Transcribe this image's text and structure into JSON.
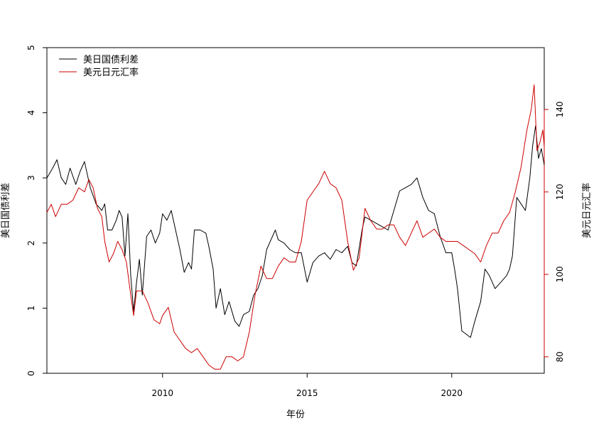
{
  "chart_data": {
    "type": "line",
    "xlabel": "年份",
    "ylabel_left": "美日国债利差",
    "ylabel_right": "美元日元汇率",
    "xlim": [
      2006.0,
      2023.2
    ],
    "ylim_left": [
      0,
      5
    ],
    "ylim_right": [
      76,
      155
    ],
    "x_ticks": [
      2010,
      2015,
      2020
    ],
    "y_ticks_left": [
      0,
      1,
      2,
      3,
      4,
      5
    ],
    "y_ticks_right": [
      80,
      100,
      120,
      140
    ],
    "grid": false,
    "legend_position": "top-left",
    "series": [
      {
        "name": "美日国债利差",
        "color": "#000000",
        "axis": "left",
        "x": [
          2006.0,
          2006.2,
          2006.35,
          2006.5,
          2006.65,
          2006.8,
          2007.0,
          2007.15,
          2007.3,
          2007.5,
          2007.7,
          2007.9,
          2008.0,
          2008.1,
          2008.25,
          2008.4,
          2008.5,
          2008.6,
          2008.7,
          2008.8,
          2008.9,
          2009.0,
          2009.1,
          2009.2,
          2009.3,
          2009.45,
          2009.6,
          2009.75,
          2009.9,
          2010.0,
          2010.15,
          2010.3,
          2010.45,
          2010.6,
          2010.75,
          2010.9,
          2011.0,
          2011.1,
          2011.3,
          2011.5,
          2011.6,
          2011.75,
          2011.85,
          2012.0,
          2012.15,
          2012.3,
          2012.5,
          2012.65,
          2012.8,
          2013.0,
          2013.15,
          2013.3,
          2013.45,
          2013.6,
          2013.75,
          2013.9,
          2014.0,
          2014.2,
          2014.4,
          2014.6,
          2014.8,
          2015.0,
          2015.2,
          2015.4,
          2015.6,
          2015.8,
          2016.0,
          2016.2,
          2016.4,
          2016.55,
          2016.7,
          2016.9,
          2017.0,
          2017.2,
          2017.4,
          2017.6,
          2017.8,
          2018.0,
          2018.2,
          2018.4,
          2018.6,
          2018.8,
          2019.0,
          2019.2,
          2019.4,
          2019.6,
          2019.8,
          2020.0,
          2020.1,
          2020.2,
          2020.35,
          2020.5,
          2020.65,
          2020.8,
          2021.0,
          2021.15,
          2021.3,
          2021.5,
          2021.7,
          2021.9,
          2022.0,
          2022.1,
          2022.25,
          2022.4,
          2022.55,
          2022.7,
          2022.8,
          2022.9,
          2023.0,
          2023.1,
          2023.2
        ],
        "values": [
          3.0,
          3.15,
          3.28,
          3.0,
          2.9,
          3.15,
          2.9,
          3.1,
          3.25,
          2.85,
          2.6,
          2.5,
          2.6,
          2.2,
          2.2,
          2.35,
          2.5,
          2.4,
          1.8,
          2.45,
          1.5,
          0.95,
          1.4,
          1.75,
          1.2,
          2.1,
          2.2,
          2.0,
          2.15,
          2.45,
          2.35,
          2.5,
          2.2,
          1.9,
          1.55,
          1.7,
          1.6,
          2.2,
          2.2,
          2.15,
          1.95,
          1.6,
          1.0,
          1.3,
          0.9,
          1.1,
          0.8,
          0.72,
          0.9,
          0.95,
          1.2,
          1.3,
          1.5,
          1.9,
          2.05,
          2.2,
          2.05,
          2.0,
          1.9,
          1.85,
          1.85,
          1.4,
          1.7,
          1.8,
          1.85,
          1.75,
          1.9,
          1.85,
          1.95,
          1.7,
          1.65,
          2.2,
          2.4,
          2.35,
          2.3,
          2.25,
          2.2,
          2.5,
          2.8,
          2.85,
          2.9,
          3.0,
          2.7,
          2.5,
          2.45,
          2.1,
          1.85,
          1.85,
          1.6,
          1.3,
          0.65,
          0.6,
          0.55,
          0.8,
          1.1,
          1.6,
          1.5,
          1.3,
          1.4,
          1.5,
          1.6,
          1.8,
          2.7,
          2.6,
          2.5,
          3.0,
          3.5,
          3.8,
          3.3,
          3.45,
          3.2
        ]
      },
      {
        "name": "美元日元汇率",
        "color": "#cc0000",
        "axis": "right",
        "x": [
          2006.0,
          2006.15,
          2006.3,
          2006.5,
          2006.7,
          2006.9,
          2007.1,
          2007.3,
          2007.45,
          2007.6,
          2007.75,
          2007.9,
          2008.0,
          2008.15,
          2008.3,
          2008.45,
          2008.6,
          2008.75,
          2008.9,
          2009.0,
          2009.1,
          2009.3,
          2009.5,
          2009.7,
          2009.9,
          2010.0,
          2010.2,
          2010.4,
          2010.6,
          2010.8,
          2011.0,
          2011.2,
          2011.4,
          2011.6,
          2011.8,
          2012.0,
          2012.2,
          2012.4,
          2012.6,
          2012.8,
          2013.0,
          2013.2,
          2013.4,
          2013.6,
          2013.8,
          2014.0,
          2014.2,
          2014.4,
          2014.6,
          2014.8,
          2015.0,
          2015.2,
          2015.4,
          2015.6,
          2015.8,
          2016.0,
          2016.2,
          2016.4,
          2016.6,
          2016.8,
          2017.0,
          2017.2,
          2017.4,
          2017.6,
          2017.8,
          2018.0,
          2018.2,
          2018.4,
          2018.6,
          2018.8,
          2019.0,
          2019.2,
          2019.4,
          2019.6,
          2019.8,
          2020.0,
          2020.2,
          2020.4,
          2020.6,
          2020.8,
          2021.0,
          2021.2,
          2021.4,
          2021.6,
          2021.8,
          2022.0,
          2022.2,
          2022.4,
          2022.6,
          2022.75,
          2022.85,
          2022.95,
          2023.05,
          2023.15,
          2023.2
        ],
        "values": [
          115,
          117,
          114,
          117,
          117,
          118,
          121,
          120,
          123,
          121,
          116,
          114,
          108,
          103,
          105,
          108,
          106,
          103,
          95,
          90,
          96,
          96,
          93,
          89,
          88,
          90,
          92,
          86,
          84,
          82,
          81,
          82,
          80,
          78,
          77,
          77,
          80,
          80,
          79,
          80,
          86,
          95,
          102,
          99,
          99,
          102,
          104,
          103,
          103,
          108,
          118,
          120,
          122,
          125,
          122,
          121,
          118,
          108,
          101,
          104,
          116,
          113,
          111,
          111,
          112,
          112,
          109,
          107,
          110,
          113,
          109,
          110,
          111,
          109,
          108,
          108,
          108,
          107,
          106,
          105,
          103,
          107,
          110,
          110,
          113,
          115,
          120,
          126,
          135,
          140,
          146,
          130,
          132,
          135,
          131
        ]
      }
    ]
  }
}
